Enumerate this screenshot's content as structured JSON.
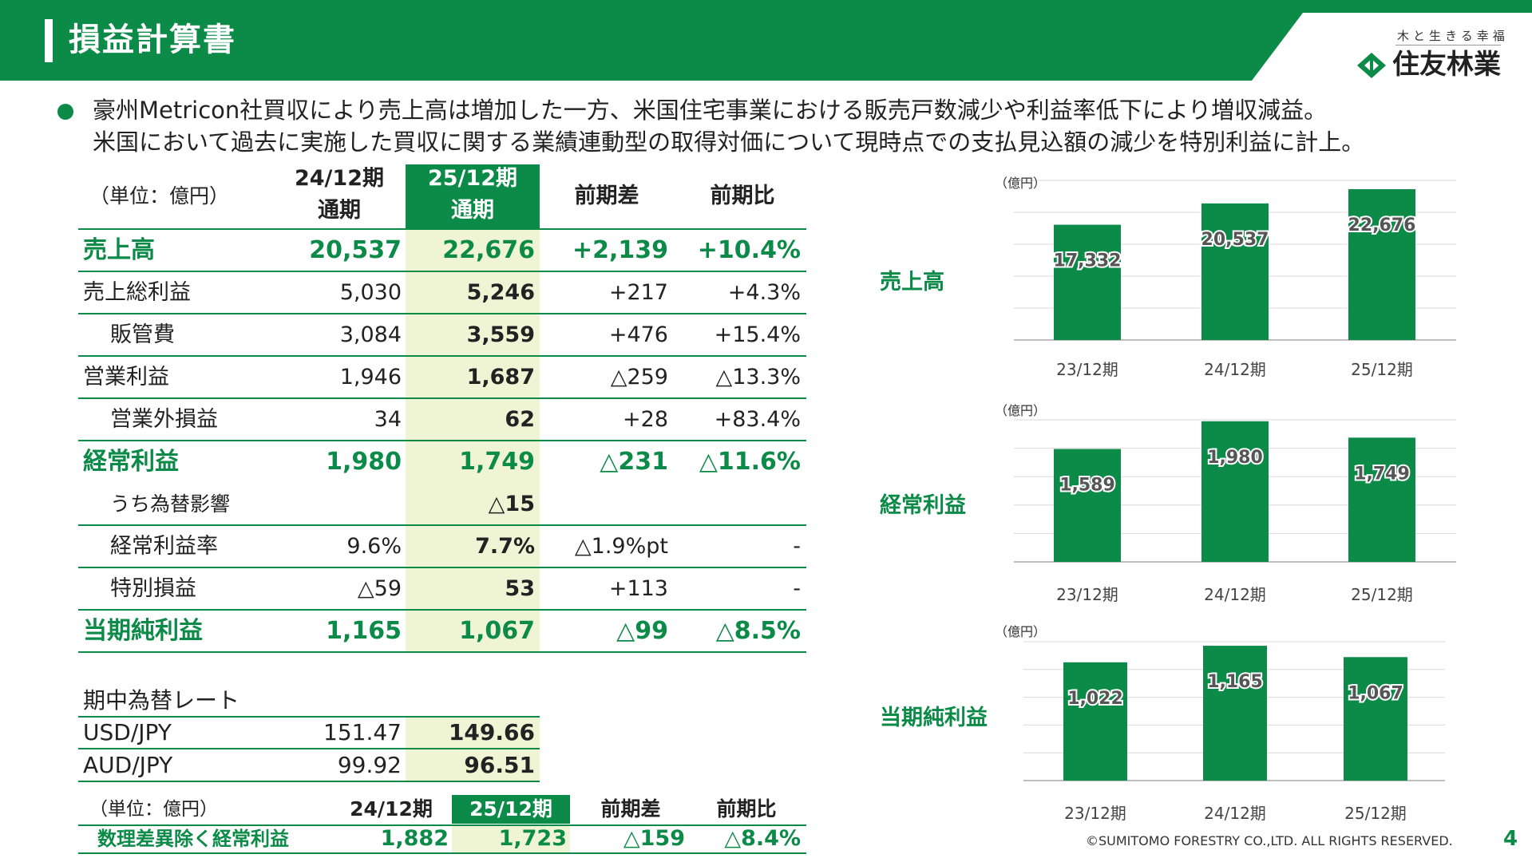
{
  "header": {
    "title": "損益計算書",
    "tagline": "木と生きる幸福",
    "logo_text": "住友林業",
    "brand_color": "#0c8a48"
  },
  "summary": {
    "line1": "豪州Metricon社買収により売上高は増加した一方、米国住宅事業における販売戸数減少や利益率低下により増収減益。",
    "line2": "米国において過去に実施した買収に関する業績連動型の取得対価について現時点での支払見込額の減少を特別利益に計上。"
  },
  "pl_table": {
    "unit": "（単位：億円）",
    "headers": {
      "prev_line1": "24/12期",
      "prev_line2": "通期",
      "curr_line1": "25/12期",
      "curr_line2": "通期",
      "diff": "前期差",
      "ratio": "前期比"
    },
    "rows": [
      {
        "label": "売上高",
        "prev": "20,537",
        "curr": "22,676",
        "diff": "+2,139",
        "ratio": "+10.4%"
      },
      {
        "label": "売上総利益",
        "prev": "5,030",
        "curr": "5,246",
        "diff": "+217",
        "ratio": "+4.3%"
      },
      {
        "label": "販管費",
        "prev": "3,084",
        "curr": "3,559",
        "diff": "+476",
        "ratio": "+15.4%"
      },
      {
        "label": "営業利益",
        "prev": "1,946",
        "curr": "1,687",
        "diff": "△259",
        "ratio": "△13.3%"
      },
      {
        "label": "営業外損益",
        "prev": "34",
        "curr": "62",
        "diff": "+28",
        "ratio": "+83.4%"
      },
      {
        "label": "経常利益",
        "prev": "1,980",
        "curr": "1,749",
        "diff": "△231",
        "ratio": "△11.6%"
      },
      {
        "label": "うち為替影響",
        "prev": "",
        "curr": "△15",
        "diff": "",
        "ratio": ""
      },
      {
        "label": "経常利益率",
        "prev": "9.6%",
        "curr": "7.7%",
        "diff": "△1.9%pt",
        "ratio": "-"
      },
      {
        "label": "特別損益",
        "prev": "△59",
        "curr": "53",
        "diff": "+113",
        "ratio": "-"
      },
      {
        "label": "当期純利益",
        "prev": "1,165",
        "curr": "1,067",
        "diff": "△99",
        "ratio": "△8.5%"
      }
    ]
  },
  "fx_table": {
    "title": "期中為替レート",
    "rows": [
      {
        "label": "USD/JPY",
        "prev": "151.47",
        "curr": "149.66"
      },
      {
        "label": "AUD/JPY",
        "prev": "99.92",
        "curr": "96.51"
      }
    ]
  },
  "actuarial_table": {
    "unit": "（単位：億円）",
    "headers": {
      "prev": "24/12期",
      "curr": "25/12期",
      "diff": "前期差",
      "ratio": "前期比"
    },
    "row": {
      "label": "数理差異除く経常利益",
      "prev": "1,882",
      "curr": "1,723",
      "diff": "△159",
      "ratio": "△8.4%"
    }
  },
  "chart_data": [
    {
      "type": "bar",
      "label": "売上高",
      "unit": "（億円）",
      "categories": [
        "23/12期",
        "24/12期",
        "25/12期"
      ],
      "values": [
        17332,
        20537,
        22676
      ],
      "value_labels": [
        "17,332",
        "20,537",
        "22,676"
      ],
      "ylim": [
        0,
        24000
      ],
      "color": "#0c8a48"
    },
    {
      "type": "bar",
      "label": "経常利益",
      "unit": "（億円）",
      "categories": [
        "23/12期",
        "24/12期",
        "25/12期"
      ],
      "values": [
        1589,
        1980,
        1749
      ],
      "value_labels": [
        "1,589",
        "1,980",
        "1,749"
      ],
      "ylim": [
        0,
        2000
      ],
      "color": "#0c8a48"
    },
    {
      "type": "bar",
      "label": "当期純利益",
      "unit": "（億円）",
      "categories": [
        "23/12期",
        "24/12期",
        "25/12期"
      ],
      "values": [
        1022,
        1165,
        1067
      ],
      "value_labels": [
        "1,022",
        "1,165",
        "1,067"
      ],
      "ylim": [
        0,
        1200
      ],
      "color": "#0c8a48"
    }
  ],
  "footer": {
    "copyright": "©SUMITOMO FORESTRY CO.,LTD. ALL RIGHTS RESERVED.",
    "page": "4"
  }
}
